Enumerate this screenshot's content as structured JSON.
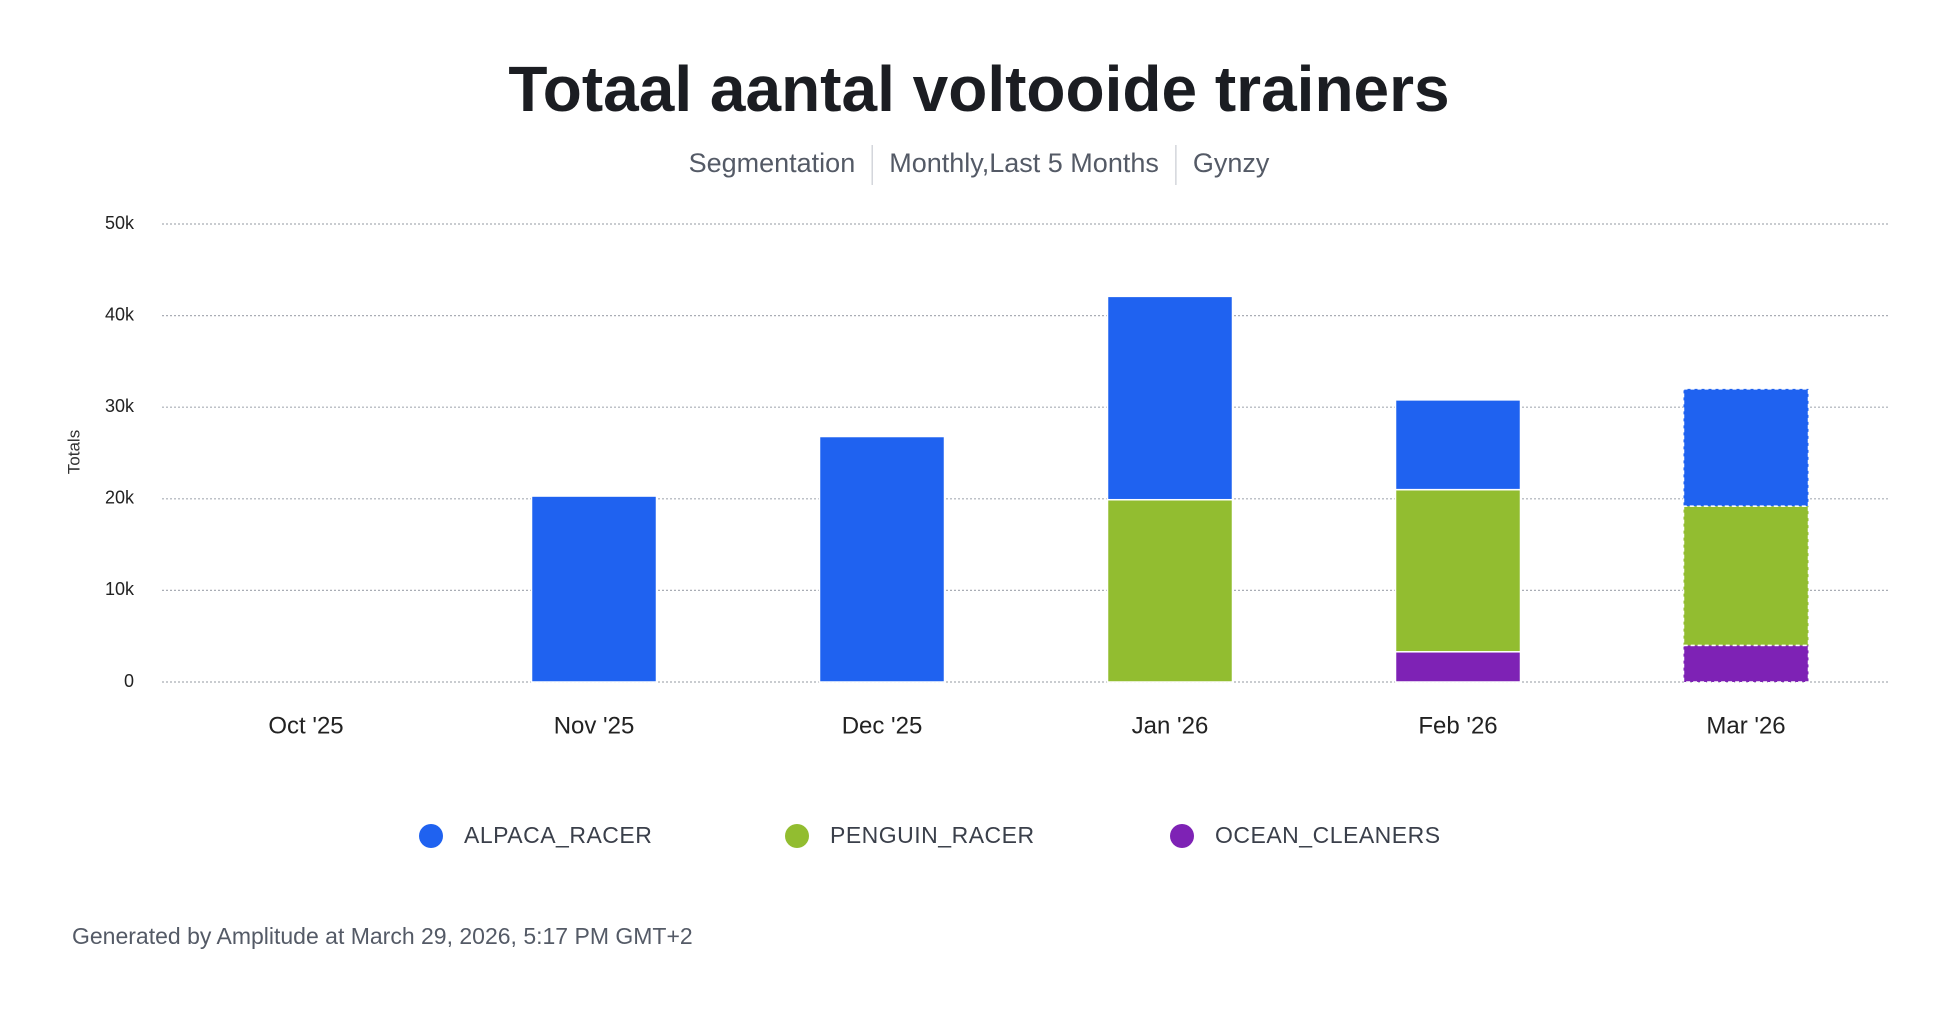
{
  "chart_data": {
    "type": "stacked_bar",
    "title": "Totaal aantal voltooide trainers",
    "subtitle": [
      "Segmentation",
      "Monthly,Last 5 Months",
      "Gynzy"
    ],
    "ylabel": "Totals",
    "categories": [
      "Oct '25",
      "Nov '25",
      "Dec '25",
      "Jan '26",
      "Feb '26",
      "Mar '26"
    ],
    "series": [
      {
        "name": "ALPACA_RACER",
        "color": "#1f62f0",
        "values": [
          null,
          20300,
          26800,
          22200,
          9800,
          12800
        ]
      },
      {
        "name": "PENGUIN_RACER",
        "color": "#92bd30",
        "values": [
          null,
          null,
          null,
          19900,
          17700,
          15200
        ]
      },
      {
        "name": "OCEAN_CLEANERS",
        "color": "#7e22b5",
        "values": [
          null,
          null,
          null,
          null,
          3300,
          4000
        ]
      }
    ],
    "ylim": [
      0,
      50000
    ],
    "yticks": [
      0,
      {
        "value": 10000,
        "label": "10k"
      },
      {
        "value": 20000,
        "label": "20k"
      },
      {
        "value": 30000,
        "label": "30k"
      },
      {
        "value": 40000,
        "label": "40k"
      },
      {
        "value": 50000,
        "label": "50k"
      }
    ],
    "grid": true,
    "footer": "Generated by Amplitude at March 29, 2026, 5:17 PM GMT+2"
  }
}
